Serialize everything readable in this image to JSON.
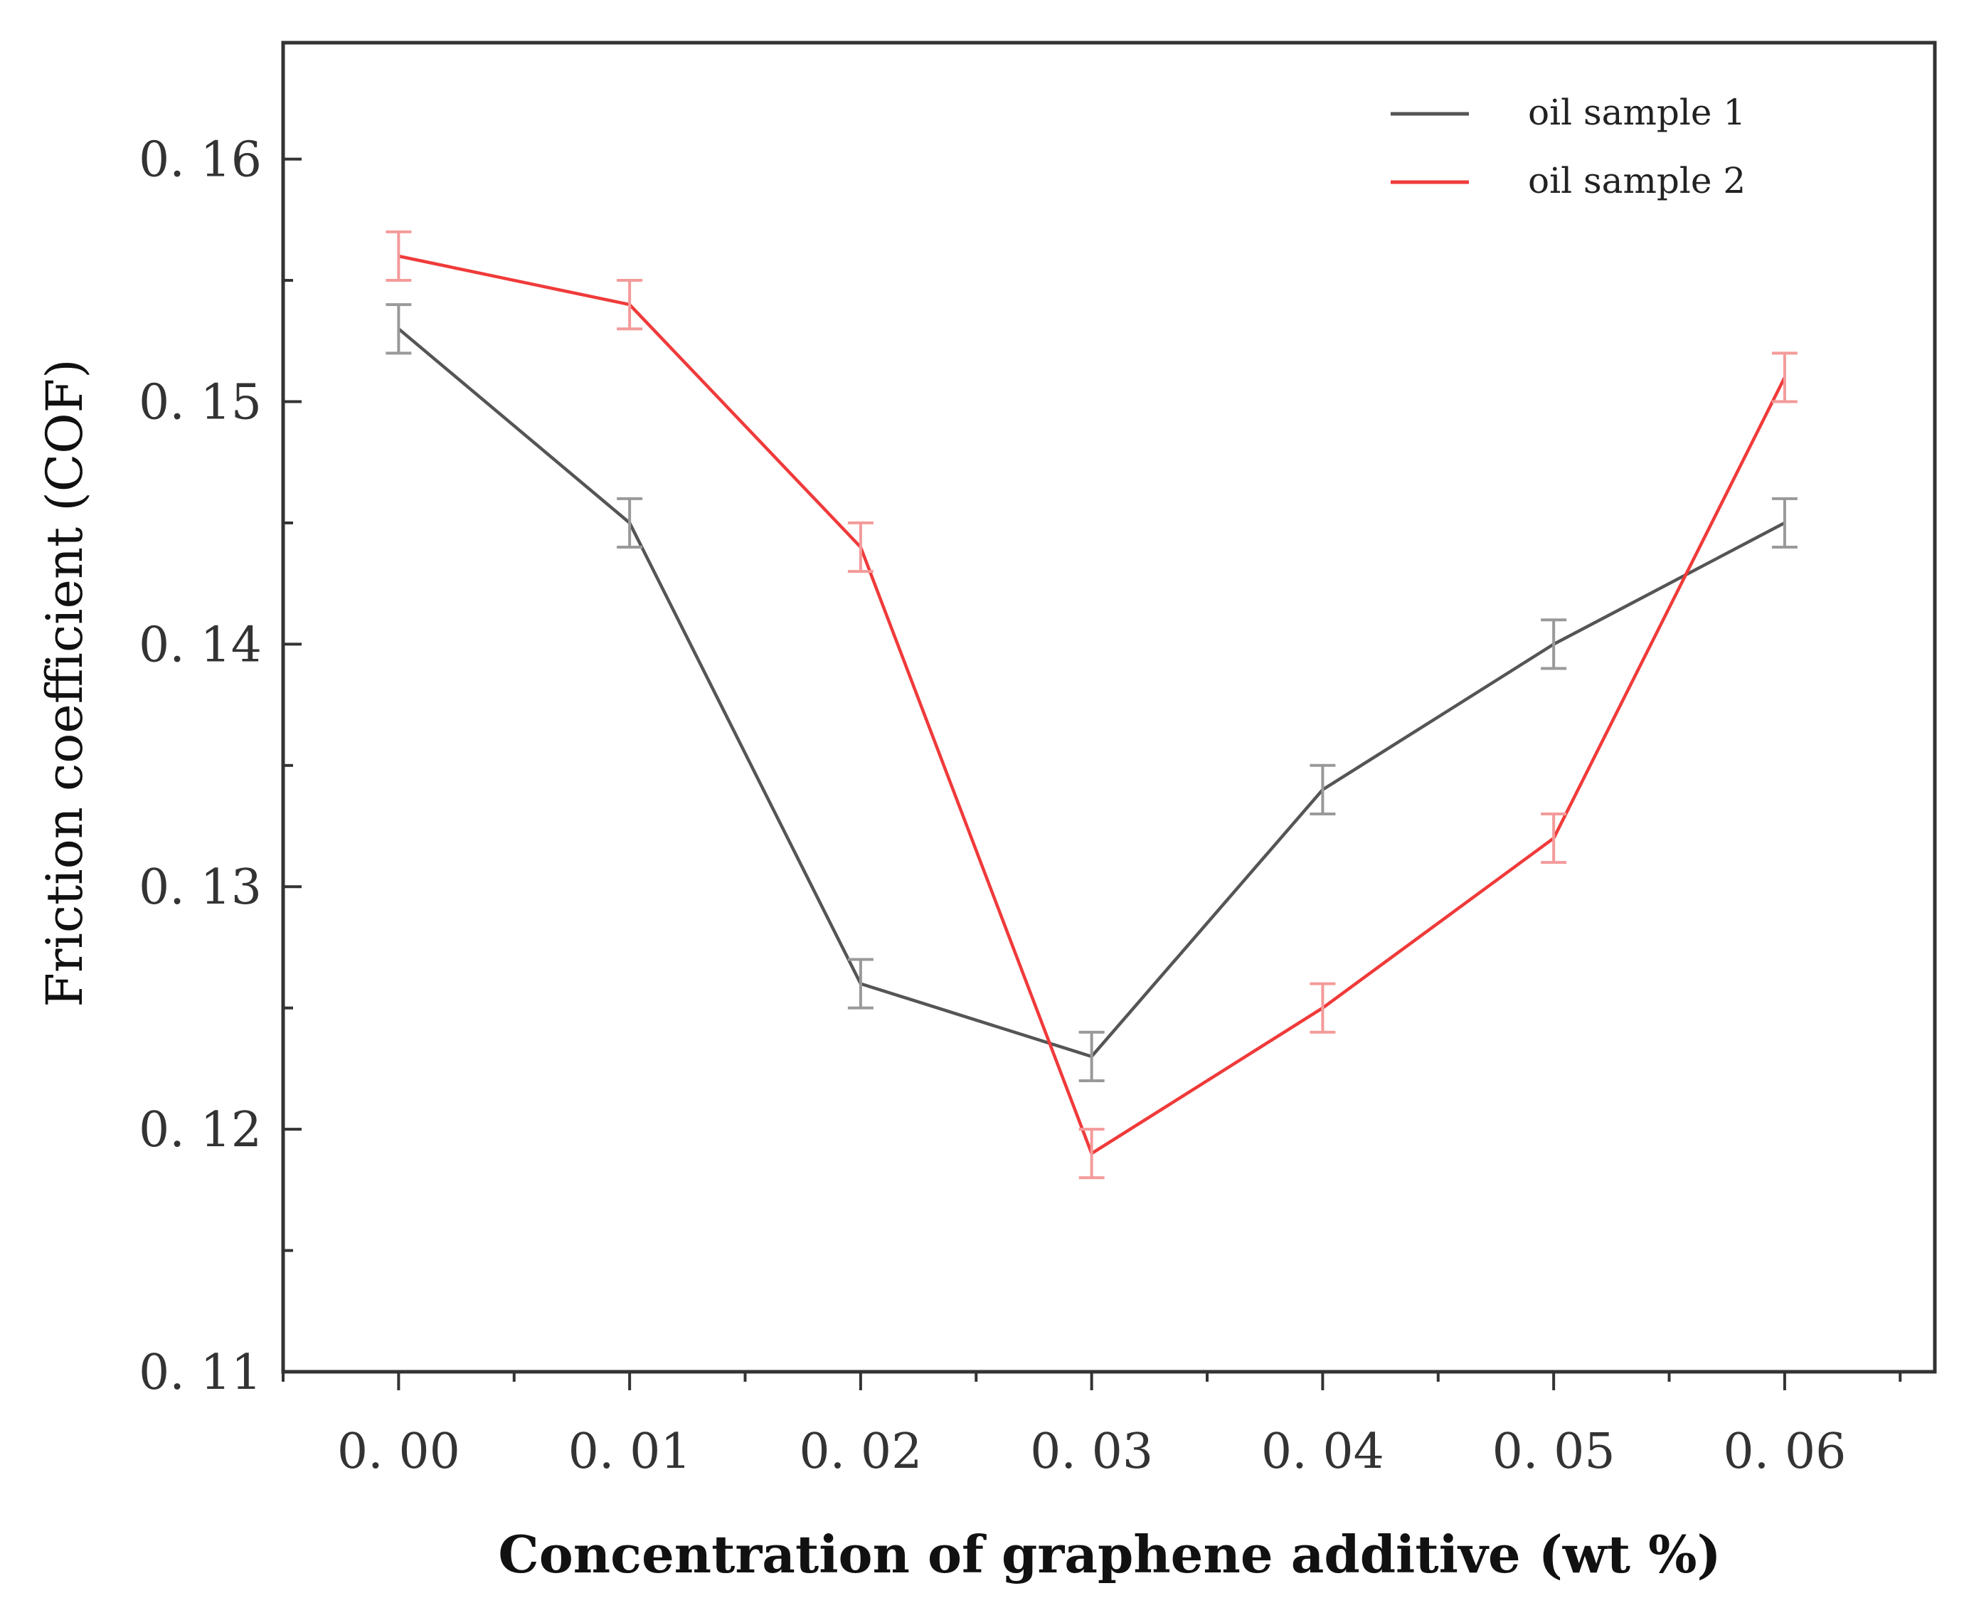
{
  "chart_data": {
    "type": "line",
    "title": "",
    "xlabel": "Concentration  of graphene additive (wt %)",
    "ylabel": "Friction coefficient (COF)",
    "x": [
      0.0,
      0.01,
      0.02,
      0.03,
      0.04,
      0.05,
      0.06
    ],
    "x_tick_labels": [
      "0. 00",
      "0. 01",
      "0. 02",
      "0. 03",
      "0. 04",
      "0. 05",
      "0. 06"
    ],
    "y_tick_values": [
      0.11,
      0.12,
      0.13,
      0.14,
      0.15,
      0.16
    ],
    "y_tick_labels": [
      "0. 11",
      "0. 12",
      "0. 13",
      "0. 14",
      "0. 15",
      "0. 16"
    ],
    "xlim": [
      -0.005,
      0.0665
    ],
    "ylim": [
      0.11,
      0.1648
    ],
    "grid": false,
    "legend_position": "top-right",
    "series": [
      {
        "name": "oil sample 1",
        "color": "#555555",
        "error_color": "#999999",
        "values": [
          0.153,
          0.145,
          0.126,
          0.123,
          0.134,
          0.14,
          0.145
        ],
        "errors": [
          0.001,
          0.001,
          0.001,
          0.001,
          0.001,
          0.001,
          0.001
        ]
      },
      {
        "name": "oil sample 2",
        "color": "#f03a3a",
        "error_color": "#f49a9a",
        "values": [
          0.156,
          0.154,
          0.144,
          0.119,
          0.125,
          0.132,
          0.151
        ],
        "errors": [
          0.001,
          0.001,
          0.001,
          0.001,
          0.001,
          0.001,
          0.001
        ]
      }
    ]
  }
}
